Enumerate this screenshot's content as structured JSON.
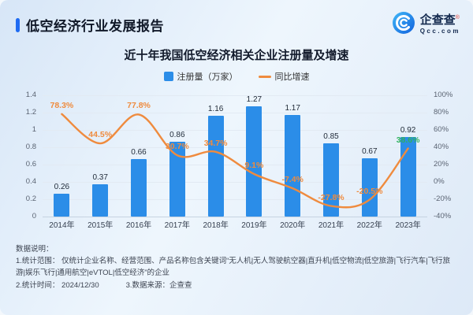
{
  "header": {
    "report_title": "低空经济行业发展报告",
    "logo": {
      "brand": "企查查",
      "reg_mark": "®",
      "domain": "Qcc.com"
    }
  },
  "chart_data": {
    "type": "combo",
    "title": "近十年我国低空经济相关企业注册量及增速",
    "legend_position": "top",
    "grid": true,
    "categories": [
      "2014年",
      "2015年",
      "2016年",
      "2017年",
      "2018年",
      "2019年",
      "2020年",
      "2021年",
      "2022年",
      "2023年"
    ],
    "series": [
      {
        "name": "注册量（万家）",
        "type": "bar",
        "color": "#2b8de8",
        "values": [
          0.26,
          0.37,
          0.66,
          0.86,
          1.16,
          1.27,
          1.17,
          0.85,
          0.67,
          0.92
        ],
        "labels": [
          "0.26",
          "0.37",
          "0.66",
          "0.86",
          "1.16",
          "1.27",
          "1.17",
          "0.85",
          "0.67",
          "0.92"
        ]
      },
      {
        "name": "同比增速",
        "type": "line",
        "color": "#ef8b3e",
        "values": [
          78.3,
          44.5,
          77.8,
          30.7,
          34.7,
          9.1,
          -7.4,
          -27.8,
          -20.5,
          38.6
        ],
        "labels": [
          "78.3%",
          "44.5%",
          "77.8%",
          "30.7%",
          "34.7%",
          "9.1%",
          "-7.4%",
          "-27.8%",
          "-20.5%",
          "38.6%"
        ],
        "label_colors": [
          "#ef8b3e",
          "#ef8b3e",
          "#ef8b3e",
          "#ef8b3e",
          "#ef8b3e",
          "#ef8b3e",
          "#ef8b3e",
          "#ef8b3e",
          "#ef8b3e",
          "#2fb061"
        ]
      }
    ],
    "left_axis": {
      "min": 0,
      "max": 1.4,
      "ticks_top_down": [
        "1.4",
        "1.2",
        "1",
        "0.8",
        "0.6",
        "0.4",
        "0.2",
        "0"
      ]
    },
    "right_axis": {
      "min": -40,
      "max": 100,
      "ticks_top_down": [
        "100%",
        "80%",
        "60%",
        "40%",
        "20%",
        "0%",
        "-20%",
        "-40%"
      ]
    }
  },
  "notes": {
    "heading": "数据说明：",
    "line1": "1.统计范围： 仅统计企业名称、经营范围、产品名称包含关键词“无人机|无人驾驶航空器|直升机|低空物流|低空旅游|飞行汽车|飞行旅游|娱乐飞行|通用航空|eVTOL|低空经济”的企业",
    "line2": "2.统计时间： 2024/12/30",
    "line3": "3.数据来源：企查查"
  }
}
